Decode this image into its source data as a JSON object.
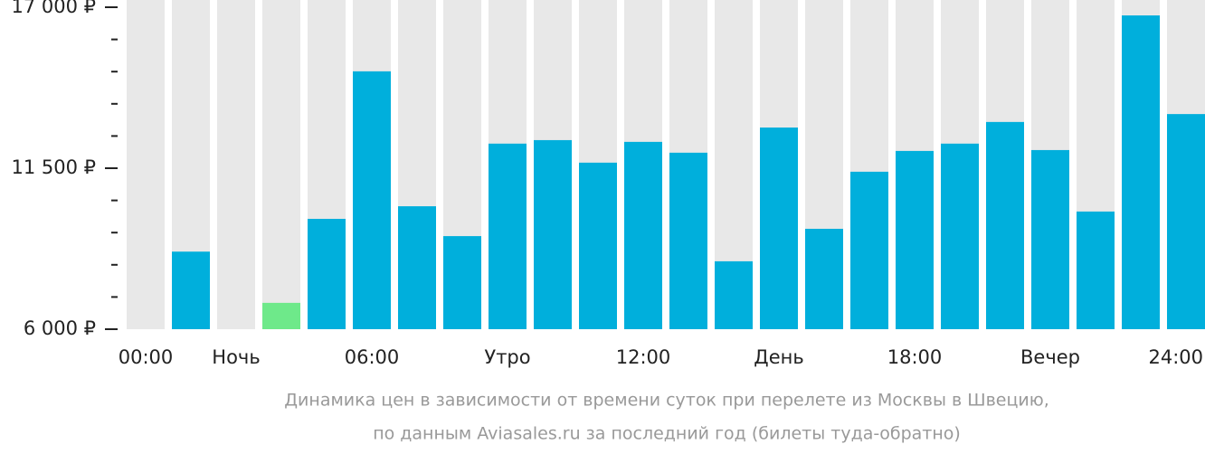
{
  "chart_data": {
    "type": "bar",
    "categories": [
      "00:00",
      null,
      "Ночь",
      null,
      null,
      "06:00",
      null,
      null,
      "Утро",
      null,
      null,
      "12:00",
      null,
      null,
      "День",
      null,
      null,
      "18:00",
      null,
      null,
      "Вечер",
      null,
      null,
      "24:00"
    ],
    "values": [
      null,
      8650,
      null,
      6900,
      9770,
      14810,
      10200,
      9180,
      12340,
      12460,
      11690,
      12400,
      12030,
      8320,
      12890,
      9430,
      11380,
      12090,
      12340,
      13080,
      12120,
      10020,
      16720,
      13350
    ],
    "color": "#00afdc",
    "highlight": 3,
    "highlight_color": "#6ee98a",
    "background_color": "#e8e8e8",
    "ylim": [
      6000,
      17000
    ],
    "yticks": [
      {
        "value": 6000,
        "label": "6 000 ₽"
      },
      {
        "value": 11500,
        "label": "11 500 ₽"
      },
      {
        "value": 17000,
        "label": "17 000 ₽"
      }
    ],
    "y_minor_ticks": [
      7100,
      8200,
      9300,
      10400,
      12600,
      13700,
      14800,
      15900
    ],
    "caption": [
      "Динамика цен в зависимости от времени суток при перелете из Москвы в Швецию,",
      "по данным Aviasales.ru за последний год (билеты туда-обратно)"
    ]
  }
}
